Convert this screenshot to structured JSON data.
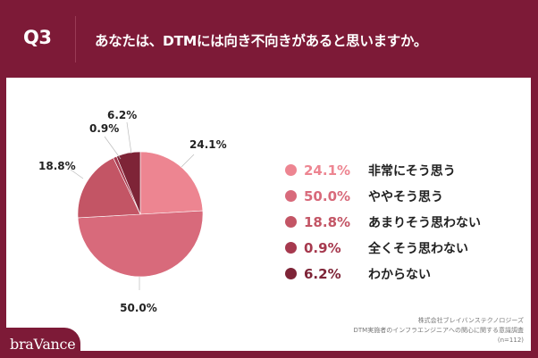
{
  "header": {
    "question_number": "Q3",
    "question_text": "あなたは、DTMには向き不向きがあると思いますか。"
  },
  "chart_data": {
    "type": "pie",
    "title": "あなたは、DTMには向き不向きがあると思いますか。",
    "categories": [
      "非常にそう思う",
      "ややそう思う",
      "あまりそう思わない",
      "全くそう思わない",
      "わからない"
    ],
    "values": [
      24.1,
      50.0,
      18.8,
      0.9,
      6.2
    ],
    "labels": [
      "24.1%",
      "50.0%",
      "18.8%",
      "0.9%",
      "6.2%"
    ],
    "colors": [
      "#ed8591",
      "#d86a7b",
      "#c35565",
      "#a6394e",
      "#7e2437"
    ],
    "start_angle": "12 o'clock",
    "direction": "clockwise",
    "legend_position": "right",
    "sample_size": "n=112"
  },
  "legend": [
    {
      "pct": "24.1%",
      "label": "非常にそう思う",
      "color": "#ed8591"
    },
    {
      "pct": "50.0%",
      "label": "ややそう思う",
      "color": "#d86a7b"
    },
    {
      "pct": "18.8%",
      "label": "あまりそう思わない",
      "color": "#c35565"
    },
    {
      "pct": "0.9%",
      "label": "全くそう思わない",
      "color": "#a6394e"
    },
    {
      "pct": "6.2%",
      "label": "わからない",
      "color": "#7e2437"
    }
  ],
  "footnote": {
    "company": "株式会社ブレイバンステクノロジーズ",
    "survey": "DTM実施者のインフラエンジニアへの関心に関する意識調査",
    "sample": "(n=112)"
  },
  "brand": {
    "logo_text": "braVance",
    "color": "#7d1a37"
  }
}
